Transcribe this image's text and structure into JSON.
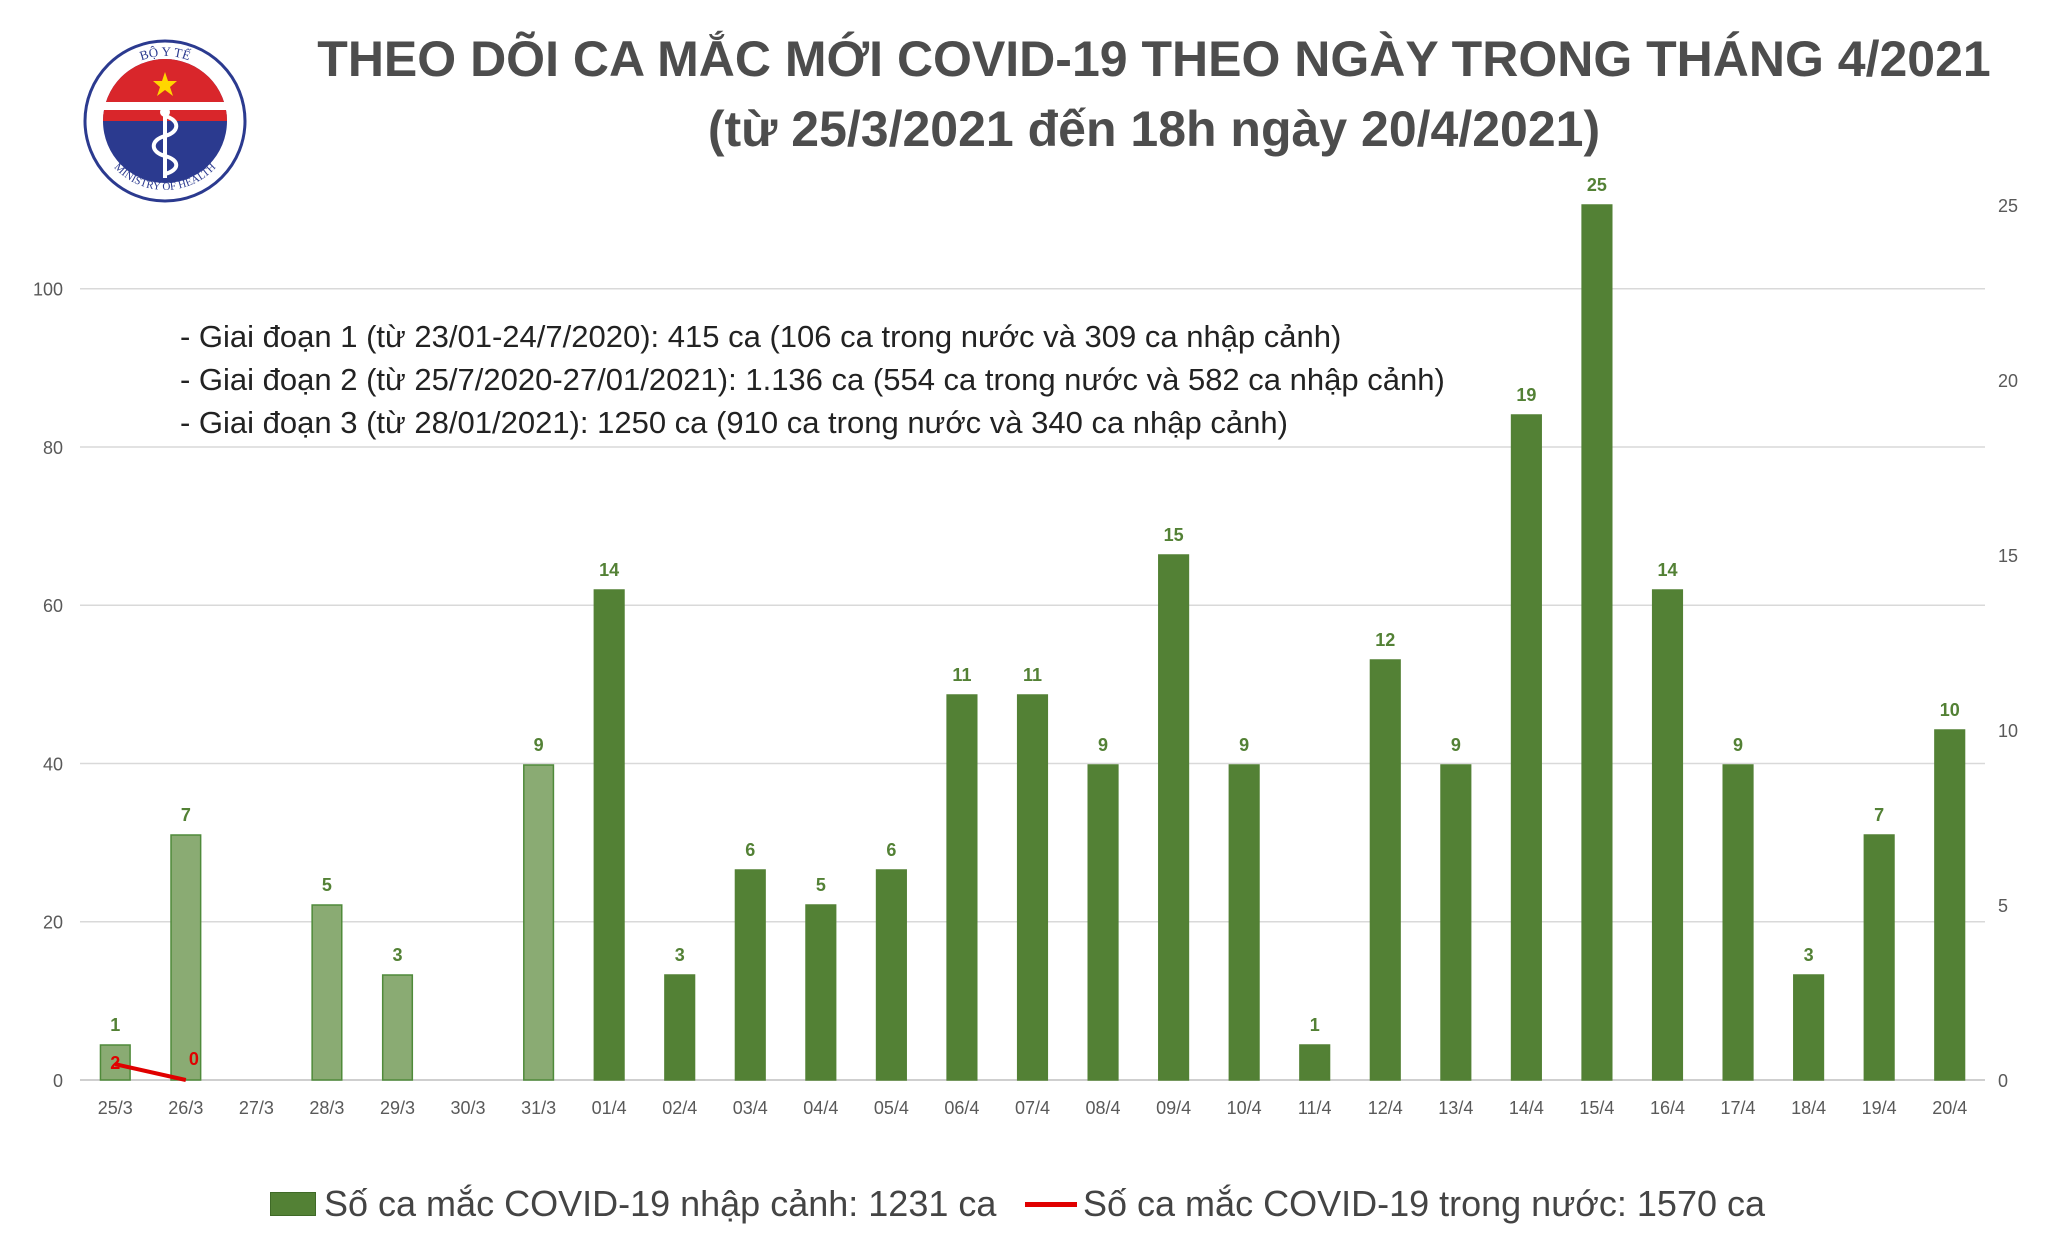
{
  "header": {
    "title_line1": "THEO DÕI CA MẮC MỚI COVID-19 THEO NGÀY TRONG THÁNG 4/2021",
    "title_line2": "(từ 25/3/2021 đến 18h ngày 20/4/2021)"
  },
  "logo": {
    "top_text": "BỘ Y TẾ",
    "bottom_text": "MINISTRY OF HEALTH"
  },
  "notes": [
    "- Giai đoạn 1 (từ 23/01-24/7/2020): 415 ca (106 ca trong nước và 309 ca nhập cảnh)",
    "- Giai đoạn 2 (từ 25/7/2020-27/01/2021): 1.136 ca (554 ca trong nước và 582 ca nhập cảnh)",
    "- Giai đoạn 3 (từ 28/01/2021): 1250 ca (910 ca trong nước và 340 ca nhập cảnh)"
  ],
  "legend": {
    "bar_label": "Số ca mắc COVID-19 nhập cảnh: 1231 ca",
    "line_label": "Số ca mắc COVID-19 trong nước: 1570 ca"
  },
  "colors": {
    "bar_march": "#8aab73",
    "bar_april": "#538135",
    "bar_label": "#538135",
    "line": "#e00000",
    "axis_text": "#595959",
    "grid": "#d9d9d9"
  },
  "chart_data": {
    "type": "bar",
    "categories": [
      "25/3",
      "26/3",
      "27/3",
      "28/3",
      "29/3",
      "30/3",
      "31/3",
      "01/4",
      "02/4",
      "03/4",
      "04/4",
      "05/4",
      "06/4",
      "07/4",
      "08/4",
      "09/4",
      "10/4",
      "11/4",
      "12/4",
      "13/4",
      "14/4",
      "15/4",
      "16/4",
      "17/4",
      "18/4",
      "19/4",
      "20/4"
    ],
    "series": [
      {
        "name": "Số ca mắc COVID-19 nhập cảnh: 1231 ca",
        "type": "bar",
        "axis": "right",
        "values": [
          1,
          7,
          null,
          5,
          3,
          null,
          9,
          14,
          3,
          6,
          5,
          6,
          11,
          11,
          9,
          15,
          9,
          1,
          12,
          9,
          19,
          25,
          14,
          9,
          3,
          7,
          10
        ]
      },
      {
        "name": "Số ca mắc COVID-19 trong nước: 1570 ca",
        "type": "line",
        "axis": "left",
        "x": [
          "25/3",
          "26/3"
        ],
        "values": [
          2,
          0
        ]
      }
    ],
    "left_axis": {
      "ylim": [
        0,
        115
      ],
      "ticks": [
        0,
        20,
        40,
        60,
        80,
        100
      ]
    },
    "right_axis": {
      "ylim": [
        0,
        26
      ],
      "ticks": [
        0,
        5,
        10,
        15,
        20,
        25
      ]
    },
    "grid": true,
    "legend_position": "bottom"
  }
}
